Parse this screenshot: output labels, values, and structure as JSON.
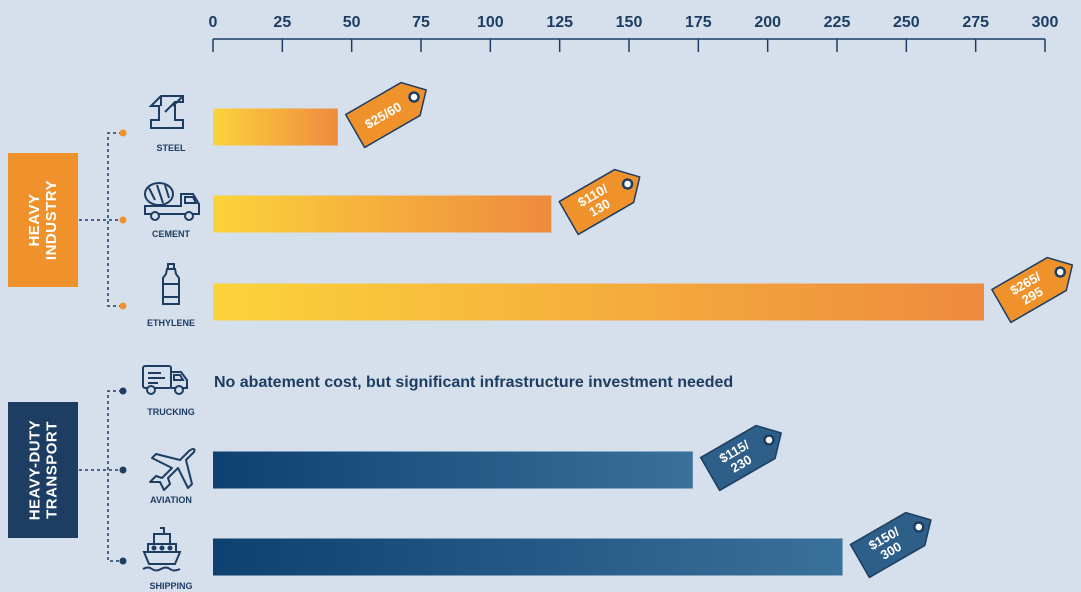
{
  "chart_data": {
    "type": "bar",
    "orientation": "horizontal",
    "xlim": [
      0,
      300
    ],
    "x_ticks": [
      0,
      25,
      50,
      75,
      100,
      125,
      150,
      175,
      200,
      225,
      250,
      275,
      300
    ],
    "groups": [
      {
        "name": "HEAVY\nINDUSTRY",
        "color": "#f0922b",
        "categories": [
          "STEEL",
          "CEMENT",
          "ETHYLENE"
        ]
      },
      {
        "name": "HEAVY-DUTY\nTRANSPORT",
        "color": "#1d3d63",
        "categories": [
          "TRUCKING",
          "AVIATION",
          "SHIPPING"
        ]
      }
    ],
    "categories": [
      "STEEL",
      "CEMENT",
      "ETHYLENE",
      "TRUCKING",
      "AVIATION",
      "SHIPPING"
    ],
    "values": [
      45,
      122,
      278,
      null,
      173,
      227
    ],
    "tags": [
      "$25/60",
      "$110/\n130",
      "$265/\n295",
      "",
      "$115/\n230",
      "$150/\n300"
    ],
    "annotations": [
      {
        "category": "TRUCKING",
        "text": "No abatement cost, but significant infrastructure investment needed"
      }
    ],
    "colors": {
      "industry_start": "#fcd33c",
      "industry_end": "#ee8a3e",
      "transport_start": "#0e4070",
      "transport_end": "#3a719a",
      "tag_industry": "#f0922b",
      "tag_transport": "#2d5f88",
      "axis": "#1d3d63"
    }
  }
}
